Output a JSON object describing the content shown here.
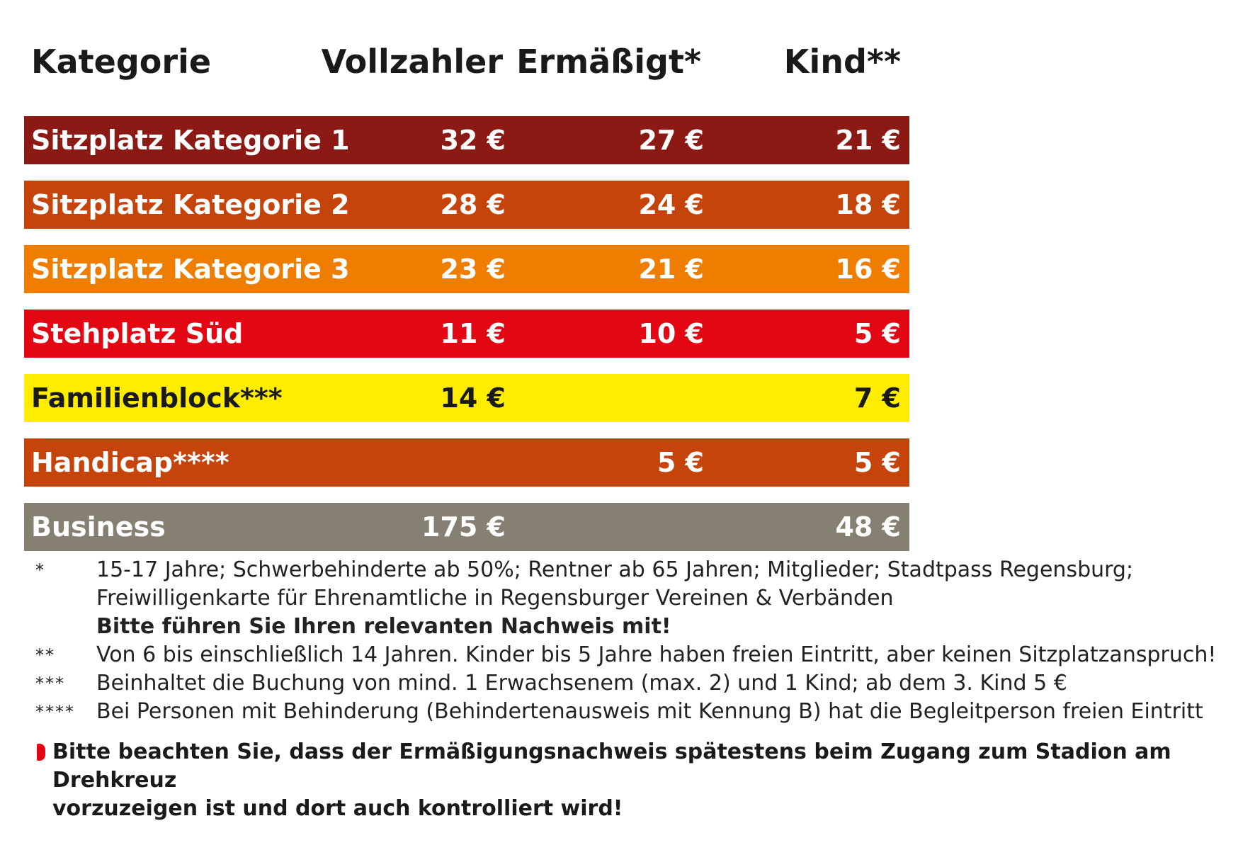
{
  "colors": {
    "kat1": "#8b1a15",
    "kat2": "#c4440c",
    "kat3": "#ee7d00",
    "steh": "#e30613",
    "familie": "#ffed00",
    "handicap": "#c4440c",
    "business": "#858072"
  },
  "header": {
    "kategorie": "Kategorie",
    "vollzahler": "Vollzahler",
    "ermaessigt": "Ermäßigt*",
    "kind": "Kind**"
  },
  "rows": [
    {
      "name": "Sitzplatz Kategorie 1",
      "voll": "32 €",
      "erm": "27 €",
      "kind": "21 €"
    },
    {
      "name": "Sitzplatz Kategorie 2",
      "voll": "28 €",
      "erm": "24 €",
      "kind": "18 €"
    },
    {
      "name": "Sitzplatz Kategorie 3",
      "voll": "23 €",
      "erm": "21 €",
      "kind": "16 €"
    },
    {
      "name": "Stehplatz Süd",
      "voll": "11 €",
      "erm": "10 €",
      "kind": "5 €"
    },
    {
      "name": "Familienblock***",
      "voll": "14 €",
      "erm": "",
      "kind": "7 €"
    },
    {
      "name": "Handicap****",
      "voll": "",
      "erm": "5 €",
      "kind": "5 €"
    },
    {
      "name": "Business",
      "voll": "175 €",
      "erm": "",
      "kind": "48 €"
    }
  ],
  "footnotes": {
    "f1_mark": "*",
    "f1_line1": "15-17 Jahre; Schwerbehinderte ab 50%; Rentner ab 65 Jahren; Mitglieder; Stadtpass Regensburg;",
    "f1_line2": "Freiwilligenkarte für Ehrenamtliche in Regensburger Vereinen & Verbänden",
    "f1_bold": "Bitte führen Sie Ihren relevanten Nachweis mit!",
    "f2_mark": "**",
    "f2_text": "Von 6 bis einschließlich 14 Jahren. Kinder bis 5 Jahre haben freien Eintritt, aber keinen Sitzplatzanspruch!",
    "f3_mark": "***",
    "f3_text": "Beinhaltet die Buchung von mind. 1 Erwachsenem (max. 2) und 1 Kind; ab dem 3. Kind 5 €",
    "f4_mark": "****",
    "f4_text": "Bei Personen mit Behinderung (Behindertenausweis mit Kennung B) hat die Begleitperson freien Eintritt"
  },
  "notice": {
    "line1": "Bitte beachten Sie, dass der Ermäßigungsnachweis spätestens beim Zugang zum Stadion am Drehkreuz",
    "line2": "vorzuzeigen ist und dort auch kontrolliert wird!"
  }
}
